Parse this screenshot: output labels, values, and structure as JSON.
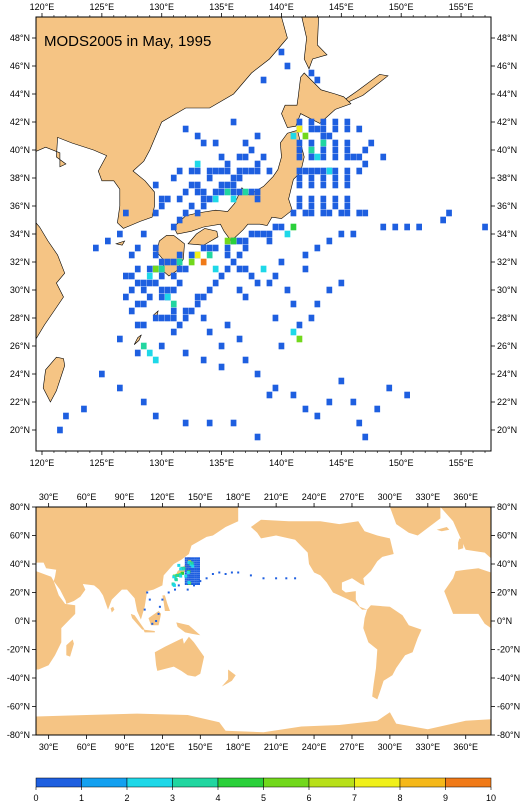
{
  "title": "MODS2005 in May, 1995",
  "colors": {
    "land": "#f5c484",
    "ocean": "#ffffff",
    "frame": "#000000"
  },
  "top_map": {
    "lon_range": [
      119.5,
      157.5
    ],
    "lat_range": [
      18.5,
      49.5
    ],
    "x_ticks": [
      "120°E",
      "125°E",
      "130°E",
      "135°E",
      "140°E",
      "145°E",
      "150°E",
      "155°E"
    ],
    "x_tick_values": [
      120,
      125,
      130,
      135,
      140,
      145,
      150,
      155
    ],
    "y_ticks": [
      "20°N",
      "22°N",
      "24°N",
      "26°N",
      "28°N",
      "30°N",
      "32°N",
      "34°N",
      "36°N",
      "38°N",
      "40°N",
      "42°N",
      "44°N",
      "46°N",
      "48°N"
    ],
    "y_tick_values": [
      20,
      22,
      24,
      26,
      28,
      30,
      32,
      34,
      36,
      38,
      40,
      42,
      44,
      46,
      48
    ]
  },
  "bottom_map": {
    "lon_range": [
      20,
      380
    ],
    "lat_range": [
      -80,
      80
    ],
    "x_ticks": [
      "30°E",
      "60°E",
      "90°E",
      "120°E",
      "150°E",
      "180°E",
      "210°E",
      "240°E",
      "270°E",
      "300°E",
      "330°E",
      "360°E"
    ],
    "x_tick_values": [
      30,
      60,
      90,
      120,
      150,
      180,
      210,
      240,
      270,
      300,
      330,
      360
    ],
    "y_ticks": [
      "80°N",
      "60°N",
      "40°N",
      "20°N",
      "0°N",
      "-20°N",
      "-40°N",
      "-60°N",
      "-80°N"
    ],
    "y_tick_values": [
      80,
      60,
      40,
      20,
      0,
      -20,
      -40,
      -60,
      -80
    ]
  },
  "colorbar": {
    "labels": [
      "0",
      "1",
      "2",
      "3",
      "4",
      "5",
      "6",
      "7",
      "8",
      "9",
      "10"
    ],
    "colors": [
      "#1e5fe0",
      "#13a0f0",
      "#1ed8e8",
      "#21d6a0",
      "#2ad03a",
      "#72d81c",
      "#b8e01a",
      "#f0f01a",
      "#f5b81a",
      "#f07a18"
    ]
  },
  "chart_data": {
    "type": "heatmap",
    "title": "MODS2005 in May, 1995",
    "value_range": [
      0,
      10
    ],
    "cell_size_deg": 0.5,
    "observations": [
      {
        "lon": 141.5,
        "lat": 41.5,
        "value": 7.5
      },
      {
        "lon": 142.0,
        "lat": 41.0,
        "value": 5.5
      },
      {
        "lon": 141.0,
        "lat": 41.0,
        "value": 2.5
      },
      {
        "lon": 142.5,
        "lat": 40.0,
        "value": 3.0
      },
      {
        "lon": 143.0,
        "lat": 39.5,
        "value": 2.5
      },
      {
        "lon": 143.5,
        "lat": 40.5,
        "value": 3.0
      },
      {
        "lon": 137.0,
        "lat": 37.0,
        "value": 3.5
      },
      {
        "lon": 136.0,
        "lat": 36.5,
        "value": 2.5
      },
      {
        "lon": 135.5,
        "lat": 37.0,
        "value": 3.0
      },
      {
        "lon": 134.5,
        "lat": 36.5,
        "value": 2.5
      },
      {
        "lon": 133.0,
        "lat": 39.0,
        "value": 2.5
      },
      {
        "lon": 135.5,
        "lat": 33.5,
        "value": 5.0
      },
      {
        "lon": 136.0,
        "lat": 33.5,
        "value": 4.0
      },
      {
        "lon": 141.0,
        "lat": 34.5,
        "value": 4.0
      },
      {
        "lon": 140.5,
        "lat": 34.0,
        "value": 2.5
      },
      {
        "lon": 133.5,
        "lat": 32.0,
        "value": 9.5
      },
      {
        "lon": 133.0,
        "lat": 32.5,
        "value": 7.5
      },
      {
        "lon": 132.5,
        "lat": 32.0,
        "value": 5.0
      },
      {
        "lon": 134.0,
        "lat": 32.5,
        "value": 3.5
      },
      {
        "lon": 134.5,
        "lat": 31.5,
        "value": 2.5
      },
      {
        "lon": 131.5,
        "lat": 32.0,
        "value": 3.0
      },
      {
        "lon": 130.0,
        "lat": 31.5,
        "value": 3.5
      },
      {
        "lon": 129.5,
        "lat": 31.5,
        "value": 5.0
      },
      {
        "lon": 129.0,
        "lat": 31.0,
        "value": 2.5
      },
      {
        "lon": 130.5,
        "lat": 29.5,
        "value": 2.5
      },
      {
        "lon": 131.0,
        "lat": 29.0,
        "value": 3.0
      },
      {
        "lon": 128.5,
        "lat": 26.0,
        "value": 3.5
      },
      {
        "lon": 129.0,
        "lat": 25.5,
        "value": 2.5
      },
      {
        "lon": 129.5,
        "lat": 25.0,
        "value": 2.5
      },
      {
        "lon": 141.5,
        "lat": 26.5,
        "value": 5.0
      },
      {
        "lon": 141.0,
        "lat": 27.0,
        "value": 2.5
      },
      {
        "lon": 138.5,
        "lat": 31.5,
        "value": 2.5
      },
      {
        "lon": 144.0,
        "lat": 38.5,
        "value": 2.5
      }
    ]
  }
}
